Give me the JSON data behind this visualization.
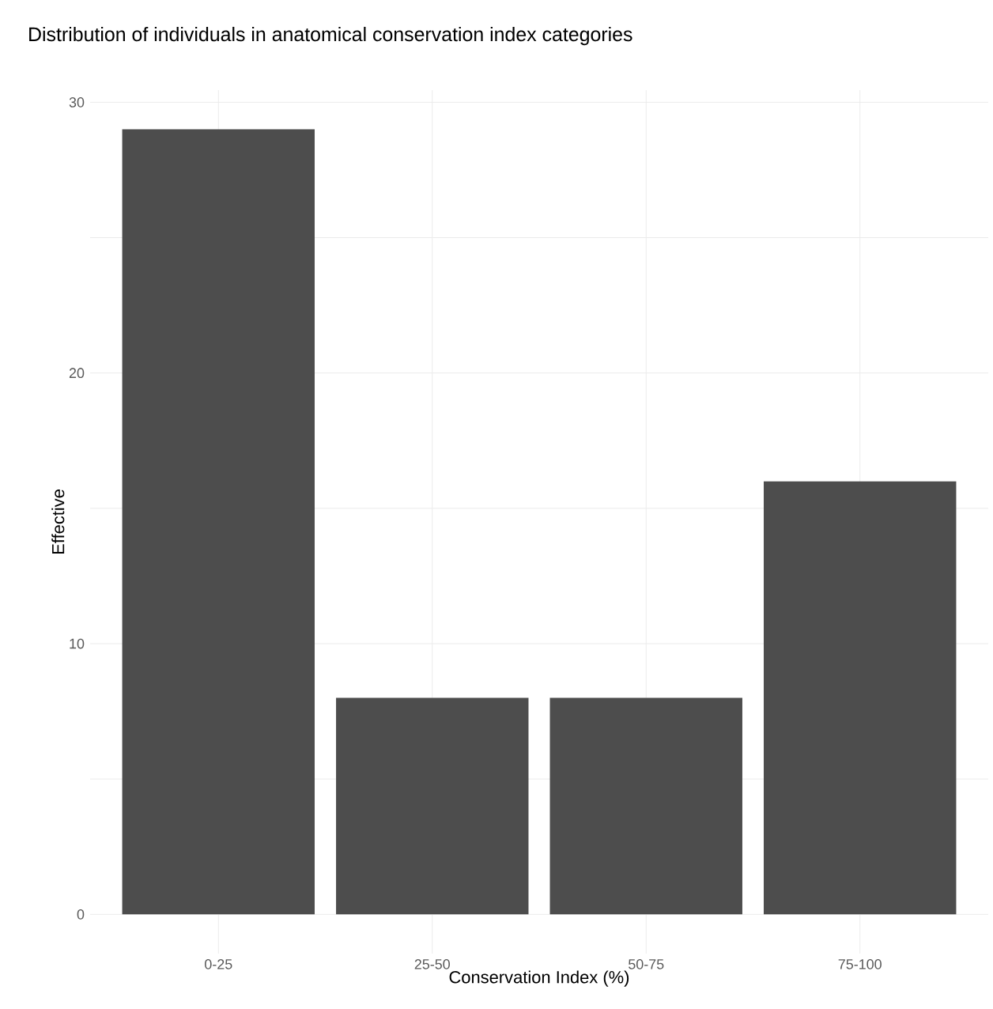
{
  "chart_data": {
    "type": "bar",
    "title": "Distribution of individuals in anatomical conservation index categories",
    "xlabel": "Conservation Index (%)",
    "ylabel": "Effective",
    "categories": [
      "0-25",
      "25-50",
      "50-75",
      "75-100"
    ],
    "values": [
      29,
      8,
      8,
      16
    ],
    "color": "#4d4d4d",
    "ylim": [
      -1.45,
      30.45
    ],
    "yticks": [
      0,
      {
        "value": 5,
        "label": null
      },
      10,
      {
        "value": 15,
        "label": null
      },
      20,
      {
        "value": 25,
        "label": null
      },
      30
    ],
    "grid": true
  }
}
